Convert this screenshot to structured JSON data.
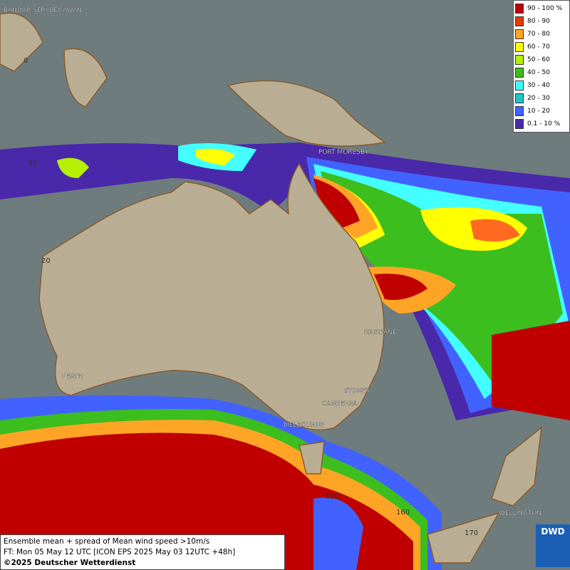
{
  "legend": [
    {
      "label": "90 - 100 %",
      "color": "#c00000"
    },
    {
      "label": "80 - 90",
      "color": "#e83a00"
    },
    {
      "label": "70 - 80",
      "color": "#ffa526"
    },
    {
      "label": "60 - 70",
      "color": "#ffff00"
    },
    {
      "label": "50 - 60",
      "color": "#b4f000"
    },
    {
      "label": "40 - 50",
      "color": "#3cbe1e"
    },
    {
      "label": "30 - 40",
      "color": "#44ffff"
    },
    {
      "label": "20 - 30",
      "color": "#22c4c4"
    },
    {
      "label": "10 - 20",
      "color": "#4262ff"
    },
    {
      "label": "0.1 - 10 %",
      "color": "#4a28aa"
    }
  ],
  "cities": [
    "BANDAR SERI BEGAWAN",
    "PORT MORESBY",
    "BRISBANE",
    "PERTH",
    "SYDNEY",
    "CANBERRA",
    "MELBOURNE",
    "WELLINGTON"
  ],
  "grid_labels": [
    "0",
    "10",
    "20",
    "150",
    "160",
    "170"
  ],
  "footer": [
    "Ensemble mean + spread of Mean wind speed >10m/s",
    "FT: Mon 05 May 12 UTC [ICON EPS 2025 May 03 12UTC +48h]",
    "©2025 Deutscher Wetterdienst"
  ],
  "logo": "DWD"
}
